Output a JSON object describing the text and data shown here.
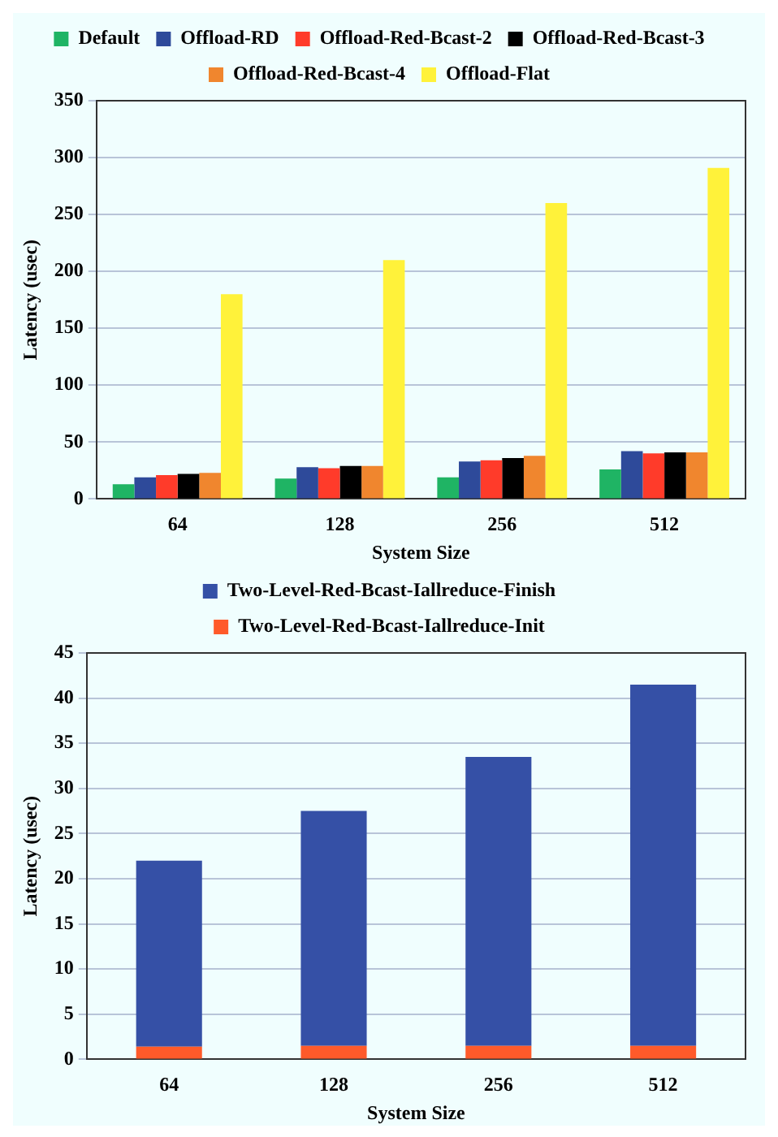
{
  "chart_data": [
    {
      "type": "bar",
      "xlabel": "System Size",
      "ylabel": "Latency (usec)",
      "categories": [
        "64",
        "128",
        "256",
        "512"
      ],
      "series": [
        {
          "name": "Default",
          "color": "#1fb464",
          "values": [
            13,
            18,
            19,
            26
          ]
        },
        {
          "name": "Offload-RD",
          "color": "#2e4a9a",
          "values": [
            19,
            28,
            33,
            42
          ]
        },
        {
          "name": "Offload-Red-Bcast-2",
          "color": "#ff3b2a",
          "values": [
            21,
            27,
            34,
            40
          ]
        },
        {
          "name": "Offload-Red-Bcast-3",
          "color": "#000000",
          "values": [
            22,
            29,
            36,
            41
          ]
        },
        {
          "name": "Offload-Red-Bcast-4",
          "color": "#f0862e",
          "values": [
            23,
            29,
            38,
            41
          ]
        },
        {
          "name": "Offload-Flat",
          "color": "#fff23a",
          "values": [
            180,
            210,
            260,
            291
          ]
        }
      ],
      "ylim": [
        0,
        350
      ],
      "yticks": [
        0,
        50,
        100,
        150,
        200,
        250,
        300,
        350
      ],
      "grid": "y",
      "legend": "top"
    },
    {
      "type": "bar",
      "stacked": true,
      "xlabel": "System Size",
      "ylabel": "Latency (usec)",
      "categories": [
        "64",
        "128",
        "256",
        "512"
      ],
      "series": [
        {
          "name": "Two-Level-Red-Bcast-Iallreduce-Init",
          "color": "#ff5a2a",
          "values": [
            1.4,
            1.5,
            1.5,
            1.5
          ]
        },
        {
          "name": "Two-Level-Red-Bcast-Iallreduce-Finish",
          "color": "#3550a6",
          "values": [
            20.6,
            26,
            32,
            40
          ]
        }
      ],
      "ylim": [
        0,
        45
      ],
      "yticks": [
        0,
        5,
        10,
        15,
        20,
        25,
        30,
        35,
        40,
        45
      ],
      "grid": "y",
      "legend": "top"
    }
  ]
}
